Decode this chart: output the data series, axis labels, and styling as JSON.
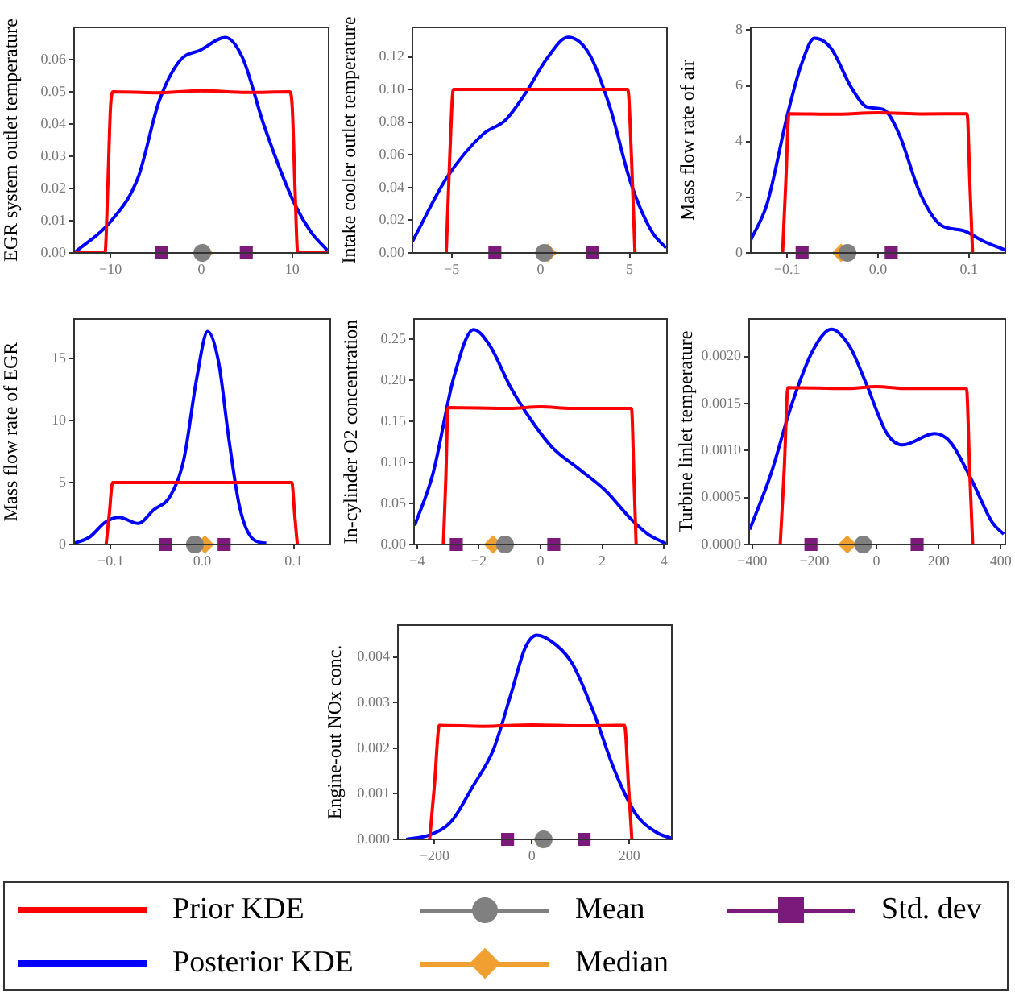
{
  "chart_data": [
    {
      "type": "line",
      "ylabel": "EGR system outlet temperature",
      "xlim": [
        -14,
        14
      ],
      "ylim": [
        0,
        0.07
      ],
      "xticks": [
        {
          "value": -10,
          "label": "−10"
        },
        0,
        10
      ],
      "yticks": [
        {
          "value": 0,
          "label": "0.00"
        },
        {
          "value": 0.01,
          "label": "0.01"
        },
        {
          "value": 0.02,
          "label": "0.02"
        },
        {
          "value": 0.03,
          "label": "0.03"
        },
        {
          "value": 0.04,
          "label": "0.04"
        },
        {
          "value": 0.05,
          "label": "0.05"
        },
        {
          "value": 0.06,
          "label": "0.06"
        }
      ],
      "series": [
        {
          "color": "#ff0000",
          "x": [
            -14,
            -10.6,
            -10.3,
            -10.0,
            -9.7,
            -5,
            0,
            5,
            9.7,
            10.0,
            10.3,
            10.6,
            14
          ],
          "values": [
            0,
            0,
            0.02,
            0.045,
            0.05,
            0.0497,
            0.0503,
            0.0498,
            0.05,
            0.045,
            0.02,
            0,
            0
          ]
        },
        {
          "color": "#0000ff",
          "x": [
            -13.85,
            -10,
            -6.95,
            -4.66,
            -2.36,
            -0.06,
            2.64,
            4.54,
            6.84,
            10,
            12,
            13.85
          ],
          "values": [
            0.0003,
            0.0097,
            0.0235,
            0.047,
            0.0597,
            0.063,
            0.0669,
            0.0605,
            0.04,
            0.0168,
            0.0067,
            0.0008
          ]
        },
        {
          "type": "scatter",
          "marker": "circle",
          "color": "#808080",
          "x": [
            0.1
          ],
          "values": [
            0
          ]
        },
        {
          "type": "scatter",
          "marker": "diamond",
          "color": "#f0a030",
          "x": [
            0.3
          ],
          "values": [
            0
          ]
        },
        {
          "type": "scatter",
          "marker": "square",
          "color": "#7b1a7b",
          "x": [
            -4.37,
            4.94
          ],
          "values": [
            0,
            0
          ]
        }
      ]
    },
    {
      "type": "line",
      "ylabel": "Intake cooler outlet temperature",
      "xlim": [
        -7.2,
        7.1
      ],
      "ylim": [
        0,
        0.138
      ],
      "xticks": [
        {
          "value": -5,
          "label": "−5"
        },
        0,
        5
      ],
      "yticks": [
        {
          "value": 0,
          "label": "0.00"
        },
        {
          "value": 0.02,
          "label": "0.02"
        },
        {
          "value": 0.04,
          "label": "0.04"
        },
        {
          "value": 0.06,
          "label": "0.06"
        },
        {
          "value": 0.08,
          "label": "0.08"
        },
        {
          "value": 0.1,
          "label": "0.10"
        },
        {
          "value": 0.12,
          "label": "0.12"
        }
      ],
      "series": [
        {
          "color": "#ff0000",
          "x": [
            -5.3,
            -5.1,
            -4.9,
            -2,
            0,
            2,
            4.9,
            5.1,
            5.3
          ],
          "values": [
            0,
            0.06,
            0.1,
            0.1,
            0.1,
            0.1,
            0.1,
            0.06,
            0
          ]
        },
        {
          "color": "#0000ff",
          "x": [
            -7.2,
            -5.27,
            -3.2,
            -2.0,
            -0.83,
            0.36,
            1.54,
            2.72,
            3.9,
            5.06,
            6.25,
            7.05
          ],
          "values": [
            0.007,
            0.046,
            0.073,
            0.081,
            0.098,
            0.119,
            0.132,
            0.122,
            0.089,
            0.043,
            0.013,
            0.003
          ]
        },
        {
          "type": "scatter",
          "marker": "circle",
          "color": "#808080",
          "x": [
            0.2
          ],
          "values": [
            0
          ]
        },
        {
          "type": "scatter",
          "marker": "diamond",
          "color": "#f0a030",
          "x": [
            0.41
          ],
          "values": [
            0
          ]
        },
        {
          "type": "scatter",
          "marker": "square",
          "color": "#7b1a7b",
          "x": [
            -2.57,
            2.93
          ],
          "values": [
            0,
            0
          ]
        }
      ]
    },
    {
      "type": "line",
      "ylabel": "Mass flow rate of air",
      "xlim": [
        -0.14,
        0.14
      ],
      "ylim": [
        0,
        8.1
      ],
      "xticks": [
        {
          "value": -0.1,
          "label": "−0.1"
        },
        {
          "value": 0,
          "label": "0.0"
        },
        0.1
      ],
      "yticks": [
        0,
        2,
        4,
        6,
        8
      ],
      "series": [
        {
          "color": "#ff0000",
          "x": [
            -0.105,
            -0.1015,
            -0.098,
            -0.05,
            0,
            0.05,
            0.098,
            0.101,
            0.104
          ],
          "values": [
            0,
            2.5,
            5.0,
            4.98,
            5.03,
            4.99,
            5.0,
            2.5,
            0
          ]
        },
        {
          "color": "#0000ff",
          "x": [
            -0.14,
            -0.122,
            -0.099,
            -0.084,
            -0.07,
            -0.052,
            -0.029,
            -0.012,
            0.006,
            0.023,
            0.046,
            0.069,
            0.093,
            0.116,
            0.14
          ],
          "values": [
            0.46,
            1.77,
            5.05,
            6.8,
            7.71,
            7.36,
            5.92,
            5.24,
            5.15,
            4.28,
            2.16,
            1.0,
            0.81,
            0.42,
            0.1
          ]
        },
        {
          "type": "scatter",
          "marker": "circle",
          "color": "#808080",
          "x": [
            -0.0336
          ],
          "values": [
            0
          ]
        },
        {
          "type": "scatter",
          "marker": "diamond",
          "color": "#f0a030",
          "x": [
            -0.0406
          ],
          "values": [
            0
          ]
        },
        {
          "type": "scatter",
          "marker": "square",
          "color": "#7b1a7b",
          "x": [
            -0.0835,
            0.0145
          ],
          "values": [
            0,
            0
          ]
        }
      ]
    },
    {
      "type": "line",
      "ylabel": "Mass flow rate of EGR",
      "xlim": [
        -0.14,
        0.14
      ],
      "ylim": [
        0,
        18.2
      ],
      "xticks": [
        {
          "value": -0.1,
          "label": "−0.1"
        },
        {
          "value": 0,
          "label": "0.0"
        },
        0.1
      ],
      "yticks": [
        0,
        5,
        10,
        15
      ],
      "series": [
        {
          "color": "#ff0000",
          "x": [
            -0.105,
            -0.1015,
            -0.098,
            -0.05,
            0,
            0.05,
            0.098,
            0.101,
            0.104
          ],
          "values": [
            0,
            2.5,
            5.0,
            5.0,
            5.0,
            5.0,
            5.0,
            2.5,
            0
          ]
        },
        {
          "color": "#0000ff",
          "x": [
            -0.14,
            -0.123,
            -0.106,
            -0.091,
            -0.07,
            -0.053,
            -0.035,
            -0.02,
            -0.006,
            0.006,
            0.018,
            0.029,
            0.041,
            0.056,
            0.07
          ],
          "values": [
            0.1,
            0.6,
            1.8,
            2.2,
            1.7,
            2.8,
            3.9,
            6.9,
            13.4,
            17.2,
            14.7,
            8.6,
            3.0,
            0.4,
            0.1
          ]
        },
        {
          "type": "scatter",
          "marker": "circle",
          "color": "#808080",
          "x": [
            -0.008
          ],
          "values": [
            0
          ]
        },
        {
          "type": "scatter",
          "marker": "diamond",
          "color": "#f0a030",
          "x": [
            0.003
          ],
          "values": [
            0
          ]
        },
        {
          "type": "scatter",
          "marker": "square",
          "color": "#7b1a7b",
          "x": [
            -0.04,
            0.024
          ],
          "values": [
            0,
            0
          ]
        }
      ]
    },
    {
      "type": "line",
      "ylabel": "In-cylinder O2 concentration",
      "xlim": [
        -4.1,
        4.1
      ],
      "ylim": [
        0,
        0.275
      ],
      "xticks": [
        {
          "value": -4,
          "label": "−4"
        },
        {
          "value": -2,
          "label": "−2"
        },
        0,
        2,
        4
      ],
      "yticks": [
        {
          "value": 0,
          "label": "0.00"
        },
        {
          "value": 0.05,
          "label": "0.05"
        },
        {
          "value": 0.1,
          "label": "0.10"
        },
        {
          "value": 0.15,
          "label": "0.15"
        },
        {
          "value": 0.2,
          "label": "0.20"
        },
        {
          "value": 0.25,
          "label": "0.25"
        }
      ],
      "series": [
        {
          "color": "#ff0000",
          "x": [
            -3.15,
            -3.07,
            -3.0,
            -1,
            0,
            1,
            2.95,
            3.03,
            3.1
          ],
          "values": [
            0,
            0.08,
            0.167,
            0.166,
            0.168,
            0.166,
            0.166,
            0.08,
            0
          ]
        },
        {
          "color": "#0000ff",
          "x": [
            -4.08,
            -3.49,
            -2.81,
            -2.17,
            -1.65,
            -0.96,
            -0.29,
            0.39,
            1.25,
            2.1,
            2.96,
            3.47,
            4.07
          ],
          "values": [
            0.023,
            0.086,
            0.204,
            0.262,
            0.243,
            0.191,
            0.151,
            0.118,
            0.092,
            0.066,
            0.03,
            0.013,
            0.001
          ]
        },
        {
          "type": "scatter",
          "marker": "circle",
          "color": "#808080",
          "x": [
            -1.15
          ],
          "values": [
            0
          ]
        },
        {
          "type": "scatter",
          "marker": "diamond",
          "color": "#f0a030",
          "x": [
            -1.54
          ],
          "values": [
            0
          ]
        },
        {
          "type": "scatter",
          "marker": "square",
          "color": "#7b1a7b",
          "x": [
            -2.73,
            0.43
          ],
          "values": [
            0,
            0
          ]
        }
      ]
    },
    {
      "type": "line",
      "ylabel": "Turbine linlet temperature",
      "xlim": [
        -410,
        415
      ],
      "ylim": [
        0,
        0.0024
      ],
      "xticks": [
        {
          "value": -400,
          "label": "−400"
        },
        {
          "value": -200,
          "label": "−200"
        },
        0,
        200,
        400
      ],
      "yticks": [
        {
          "value": 0,
          "label": "0.0000"
        },
        {
          "value": 0.0005,
          "label": "0.0005"
        },
        {
          "value": 0.001,
          "label": "0.0010"
        },
        {
          "value": 0.0015,
          "label": "0.0015"
        },
        {
          "value": 0.002,
          "label": "0.0020"
        }
      ],
      "series": [
        {
          "color": "#ff0000",
          "x": [
            -310,
            -297,
            -285,
            -100,
            0,
            100,
            290,
            300,
            310
          ],
          "values": [
            0,
            0.0008,
            0.00167,
            0.00166,
            0.00168,
            0.00166,
            0.00166,
            0.0008,
            0
          ]
        },
        {
          "color": "#0000ff",
          "x": [
            -408,
            -340,
            -272,
            -204,
            -145,
            -85,
            -34,
            34,
            85,
            187,
            238,
            306,
            374,
            410
          ],
          "values": [
            0.00016,
            0.00075,
            0.0015,
            0.00207,
            0.00229,
            0.0021,
            0.00172,
            0.00118,
            0.00106,
            0.00118,
            0.00109,
            0.00069,
            0.00023,
            0.00011
          ]
        },
        {
          "type": "scatter",
          "marker": "circle",
          "color": "#808080",
          "x": [
            -43
          ],
          "values": [
            0
          ]
        },
        {
          "type": "scatter",
          "marker": "diamond",
          "color": "#f0a030",
          "x": [
            -94
          ],
          "values": [
            0
          ]
        },
        {
          "type": "scatter",
          "marker": "square",
          "color": "#7b1a7b",
          "x": [
            -211,
            131
          ],
          "values": [
            0,
            0
          ]
        }
      ]
    },
    {
      "type": "line",
      "ylabel": "Engine-out NOx conc.",
      "xlim": [
        -275,
        287
      ],
      "ylim": [
        0,
        0.0047
      ],
      "legend": "bottom",
      "xticks": [
        {
          "value": -200,
          "label": "−200"
        },
        0,
        200
      ],
      "yticks": [
        {
          "value": 0,
          "label": "0.000"
        },
        {
          "value": 0.001,
          "label": "0.001"
        },
        {
          "value": 0.002,
          "label": "0.002"
        },
        {
          "value": 0.003,
          "label": "0.003"
        },
        {
          "value": 0.004,
          "label": "0.004"
        }
      ],
      "series": [
        {
          "name": "Prior KDE",
          "color": "#ff0000",
          "x": [
            -210,
            -200,
            -190,
            -100,
            0,
            100,
            190,
            198,
            205
          ],
          "values": [
            0,
            0.0012,
            0.0025,
            0.00248,
            0.00251,
            0.00249,
            0.0025,
            0.0012,
            0
          ]
        },
        {
          "name": "Posterior KDE",
          "color": "#0000ff",
          "x": [
            -258,
            -209,
            -165,
            -122,
            -79,
            -41,
            -14,
            10,
            50,
            83,
            126,
            170,
            213,
            256,
            287
          ],
          "values": [
            0,
            0.0001,
            0.0004,
            0.00115,
            0.00197,
            0.00326,
            0.0042,
            0.00448,
            0.00426,
            0.00385,
            0.0028,
            0.0015,
            0.00056,
            0.00015,
            2e-05
          ]
        },
        {
          "type": "scatter",
          "name": "Mean",
          "marker": "circle",
          "color": "#808080",
          "x": [
            24
          ],
          "values": [
            0
          ]
        },
        {
          "type": "scatter",
          "name": "Median",
          "marker": "diamond",
          "color": "#f0a030",
          "x": [
            21
          ],
          "values": [
            0
          ]
        },
        {
          "type": "scatter",
          "name": "Std. dev",
          "marker": "square",
          "color": "#7b1a7b",
          "x": [
            -50,
            107
          ],
          "values": [
            0,
            0
          ]
        }
      ]
    }
  ]
}
